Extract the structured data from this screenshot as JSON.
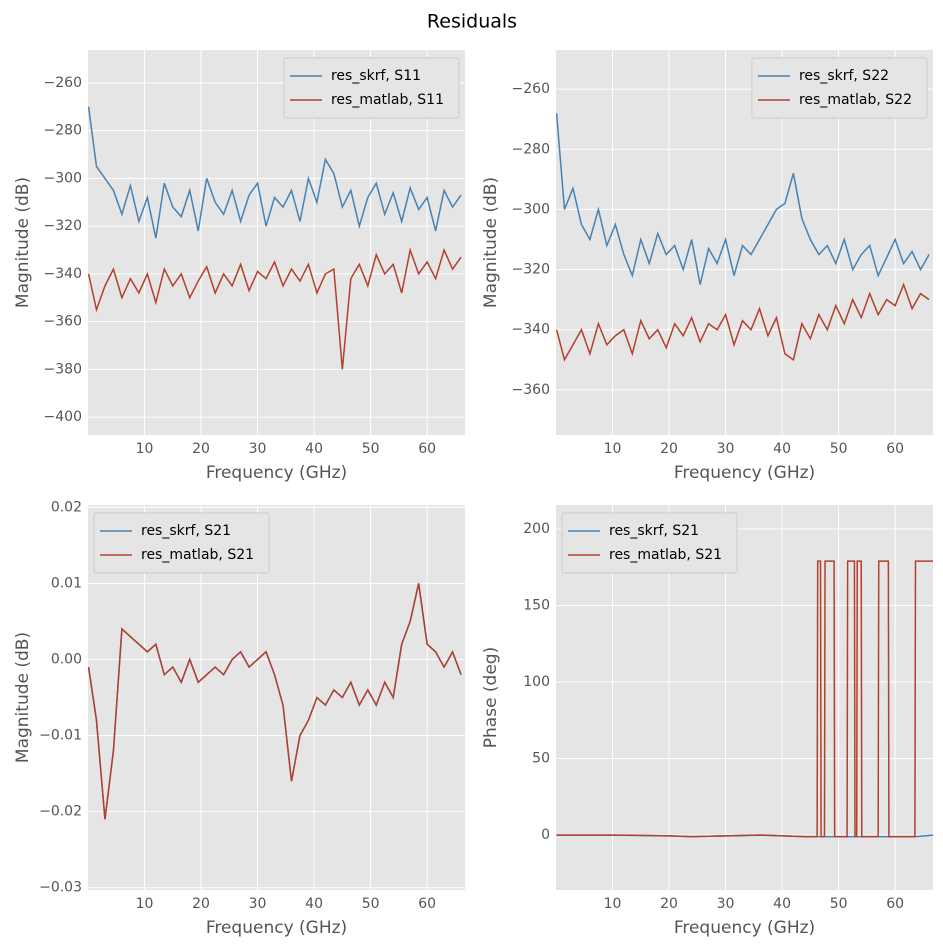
{
  "title": "Residuals",
  "chart_data": [
    {
      "type": "line",
      "xlabel": "Frequency (GHz)",
      "ylabel": "Magnitude (dB)",
      "legend": "upper right",
      "grid": true,
      "xlim": [
        0,
        66.7
      ],
      "ylim": [
        -407.5,
        -246.2
      ],
      "xticks": [
        10,
        20,
        30,
        40,
        50,
        60
      ],
      "yticks": [
        {
          "value": -400,
          "label": "−400"
        },
        {
          "value": -380,
          "label": "−380"
        },
        {
          "value": -360,
          "label": "−360"
        },
        {
          "value": -340,
          "label": "−340"
        },
        {
          "value": -320,
          "label": "−320"
        },
        {
          "value": -300,
          "label": "−300"
        },
        {
          "value": -280,
          "label": "−280"
        },
        {
          "value": -260,
          "label": "−260"
        }
      ],
      "x": [
        0.1,
        1.5,
        3,
        4.5,
        6,
        7.5,
        9,
        10.5,
        12,
        13.5,
        15,
        16.5,
        18,
        19.5,
        21,
        22.5,
        24,
        25.5,
        27,
        28.5,
        30,
        31.5,
        33,
        34.5,
        36,
        37.5,
        39,
        40.5,
        42,
        43.5,
        45,
        46.5,
        48,
        49.5,
        51,
        52.5,
        54,
        55.5,
        57,
        58.5,
        60,
        61.5,
        63,
        64.5,
        66
      ],
      "series": [
        {
          "name": "res_skrf, S11",
          "color": "#4682b4",
          "values": [
            -270,
            -295,
            -300,
            -305,
            -315,
            -303,
            -318,
            -308,
            -325,
            -302,
            -312,
            -316,
            -305,
            -322,
            -300,
            -310,
            -315,
            -305,
            -318,
            -307,
            -302,
            -320,
            -308,
            -312,
            -305,
            -318,
            -300,
            -310,
            -292,
            -298,
            -312,
            -305,
            -320,
            -308,
            -302,
            -315,
            -306,
            -318,
            -304,
            -313,
            -308,
            -322,
            -305,
            -312,
            -307
          ]
        },
        {
          "name": "res_matlab, S11",
          "color": "#b2402c",
          "values": [
            -340,
            -355,
            -345,
            -338,
            -350,
            -342,
            -348,
            -340,
            -352,
            -338,
            -345,
            -340,
            -350,
            -343,
            -337,
            -348,
            -340,
            -345,
            -336,
            -347,
            -339,
            -342,
            -335,
            -345,
            -338,
            -343,
            -336,
            -348,
            -340,
            -338,
            -380,
            -342,
            -336,
            -345,
            -332,
            -340,
            -336,
            -348,
            -330,
            -340,
            -335,
            -342,
            -330,
            -338,
            -333
          ]
        }
      ]
    },
    {
      "type": "line",
      "xlabel": "Frequency (GHz)",
      "ylabel": "Magnitude (dB)",
      "legend": "upper right",
      "grid": true,
      "xlim": [
        0,
        66.7
      ],
      "ylim": [
        -375,
        -247
      ],
      "xticks": [
        10,
        20,
        30,
        40,
        50,
        60
      ],
      "yticks": [
        {
          "value": -360,
          "label": "−360"
        },
        {
          "value": -340,
          "label": "−340"
        },
        {
          "value": -320,
          "label": "−320"
        },
        {
          "value": -300,
          "label": "−300"
        },
        {
          "value": -280,
          "label": "−280"
        },
        {
          "value": -260,
          "label": "−260"
        }
      ],
      "x": [
        0.1,
        1.5,
        3,
        4.5,
        6,
        7.5,
        9,
        10.5,
        12,
        13.5,
        15,
        16.5,
        18,
        19.5,
        21,
        22.5,
        24,
        25.5,
        27,
        28.5,
        30,
        31.5,
        33,
        34.5,
        36,
        37.5,
        39,
        40.5,
        42,
        43.5,
        45,
        46.5,
        48,
        49.5,
        51,
        52.5,
        54,
        55.5,
        57,
        58.5,
        60,
        61.5,
        63,
        64.5,
        66
      ],
      "series": [
        {
          "name": "res_skrf, S22",
          "color": "#4682b4",
          "values": [
            -268,
            -300,
            -293,
            -305,
            -310,
            -300,
            -312,
            -305,
            -315,
            -322,
            -310,
            -318,
            -308,
            -315,
            -312,
            -320,
            -310,
            -325,
            -313,
            -318,
            -310,
            -322,
            -312,
            -315,
            -310,
            -305,
            -300,
            -298,
            -288,
            -303,
            -310,
            -315,
            -312,
            -318,
            -310,
            -320,
            -315,
            -312,
            -322,
            -316,
            -310,
            -318,
            -314,
            -320,
            -315
          ]
        },
        {
          "name": "res_matlab, S22",
          "color": "#b2402c",
          "values": [
            -340,
            -350,
            -345,
            -340,
            -348,
            -338,
            -345,
            -342,
            -340,
            -348,
            -337,
            -343,
            -340,
            -346,
            -338,
            -342,
            -336,
            -344,
            -338,
            -340,
            -335,
            -345,
            -337,
            -340,
            -333,
            -342,
            -336,
            -348,
            -350,
            -338,
            -343,
            -335,
            -340,
            -332,
            -338,
            -330,
            -336,
            -328,
            -335,
            -330,
            -332,
            -325,
            -333,
            -328,
            -330
          ]
        }
      ]
    },
    {
      "type": "line",
      "xlabel": "Frequency (GHz)",
      "ylabel": "Magnitude (dB)",
      "legend": "upper left",
      "grid": true,
      "xlim": [
        0,
        66.7
      ],
      "ylim": [
        -0.0303,
        0.0203
      ],
      "xticks": [
        10,
        20,
        30,
        40,
        50,
        60
      ],
      "yticks": [
        {
          "value": -0.03,
          "label": "−0.03"
        },
        {
          "value": -0.02,
          "label": "−0.02"
        },
        {
          "value": -0.01,
          "label": "−0.01"
        },
        {
          "value": 0,
          "label": "0.00"
        },
        {
          "value": 0.01,
          "label": "0.01"
        },
        {
          "value": 0.02,
          "label": "0.02"
        }
      ],
      "x": [
        0.1,
        1.5,
        3,
        4.5,
        6,
        7.5,
        9,
        10.5,
        12,
        13.5,
        15,
        16.5,
        18,
        19.5,
        21,
        22.5,
        24,
        25.5,
        27,
        28.5,
        30,
        31.5,
        33,
        34.5,
        36,
        37.5,
        39,
        40.5,
        42,
        43.5,
        45,
        46.5,
        48,
        49.5,
        51,
        52.5,
        54,
        55.5,
        57,
        58.5,
        60,
        61.5,
        63,
        64.5,
        66
      ],
      "series": [
        {
          "name": "res_skrf, S21",
          "color": "#4682b4",
          "values": [
            -0.001,
            -0.008,
            -0.021,
            -0.012,
            0.004,
            0.003,
            0.002,
            0.001,
            0.002,
            -0.002,
            -0.001,
            -0.003,
            0.0,
            -0.003,
            -0.002,
            -0.001,
            -0.002,
            0.0,
            0.001,
            -0.001,
            0.0,
            0.001,
            -0.002,
            -0.006,
            -0.016,
            -0.01,
            -0.008,
            -0.005,
            -0.006,
            -0.004,
            -0.005,
            -0.003,
            -0.006,
            -0.004,
            -0.006,
            -0.003,
            -0.005,
            0.002,
            0.005,
            0.01,
            0.002,
            0.001,
            -0.001,
            0.001,
            -0.002
          ]
        },
        {
          "name": "res_matlab, S21",
          "color": "#b2402c",
          "values": [
            -0.001,
            -0.008,
            -0.021,
            -0.012,
            0.004,
            0.003,
            0.002,
            0.001,
            0.002,
            -0.002,
            -0.001,
            -0.003,
            0.0,
            -0.003,
            -0.002,
            -0.001,
            -0.002,
            0.0,
            0.001,
            -0.001,
            0.0,
            0.001,
            -0.002,
            -0.006,
            -0.016,
            -0.01,
            -0.008,
            -0.005,
            -0.006,
            -0.004,
            -0.005,
            -0.003,
            -0.006,
            -0.004,
            -0.006,
            -0.003,
            -0.005,
            0.002,
            0.005,
            0.01,
            0.002,
            0.001,
            -0.001,
            0.001,
            -0.002
          ]
        }
      ]
    },
    {
      "type": "line",
      "xlabel": "Frequency (GHz)",
      "ylabel": "Phase (deg)",
      "legend": "upper left",
      "grid": true,
      "xlim": [
        0,
        66.7
      ],
      "ylim": [
        -35.9,
        215.7
      ],
      "xticks": [
        10,
        20,
        30,
        40,
        50,
        60
      ],
      "yticks": [
        0,
        50,
        100,
        150,
        200
      ],
      "x": [
        0.1,
        10,
        20,
        24,
        30,
        36,
        44,
        46.2,
        46.3,
        46.8,
        46.9,
        47.5,
        47.6,
        49.2,
        49.3,
        51.5,
        51.6,
        52.8,
        52.9,
        53.2,
        53.3,
        54,
        54.1,
        57,
        57.1,
        58.8,
        58.9,
        63.5,
        63.6,
        66.7
      ],
      "series": [
        {
          "name": "res_skrf, S21",
          "color": "#4682b4",
          "values": [
            0,
            0,
            -0.5,
            -1,
            -0.5,
            0,
            -1,
            -1,
            -1,
            -1,
            -1,
            -1,
            -1,
            -1,
            -1,
            -1,
            -1,
            -1,
            -1,
            -1,
            -1,
            -1,
            -1,
            -1,
            -1,
            -1,
            -1,
            -1,
            -1,
            0
          ]
        },
        {
          "name": "res_matlab, S21",
          "color": "#b2402c",
          "values": [
            0,
            0,
            -0.5,
            -1,
            -0.5,
            0,
            -1,
            -1,
            179,
            179,
            -1,
            -1,
            179,
            179,
            -1,
            -1,
            179,
            179,
            -1,
            -1,
            179,
            179,
            -1,
            -1,
            179,
            179,
            -1,
            -1,
            179,
            179
          ]
        }
      ]
    }
  ]
}
